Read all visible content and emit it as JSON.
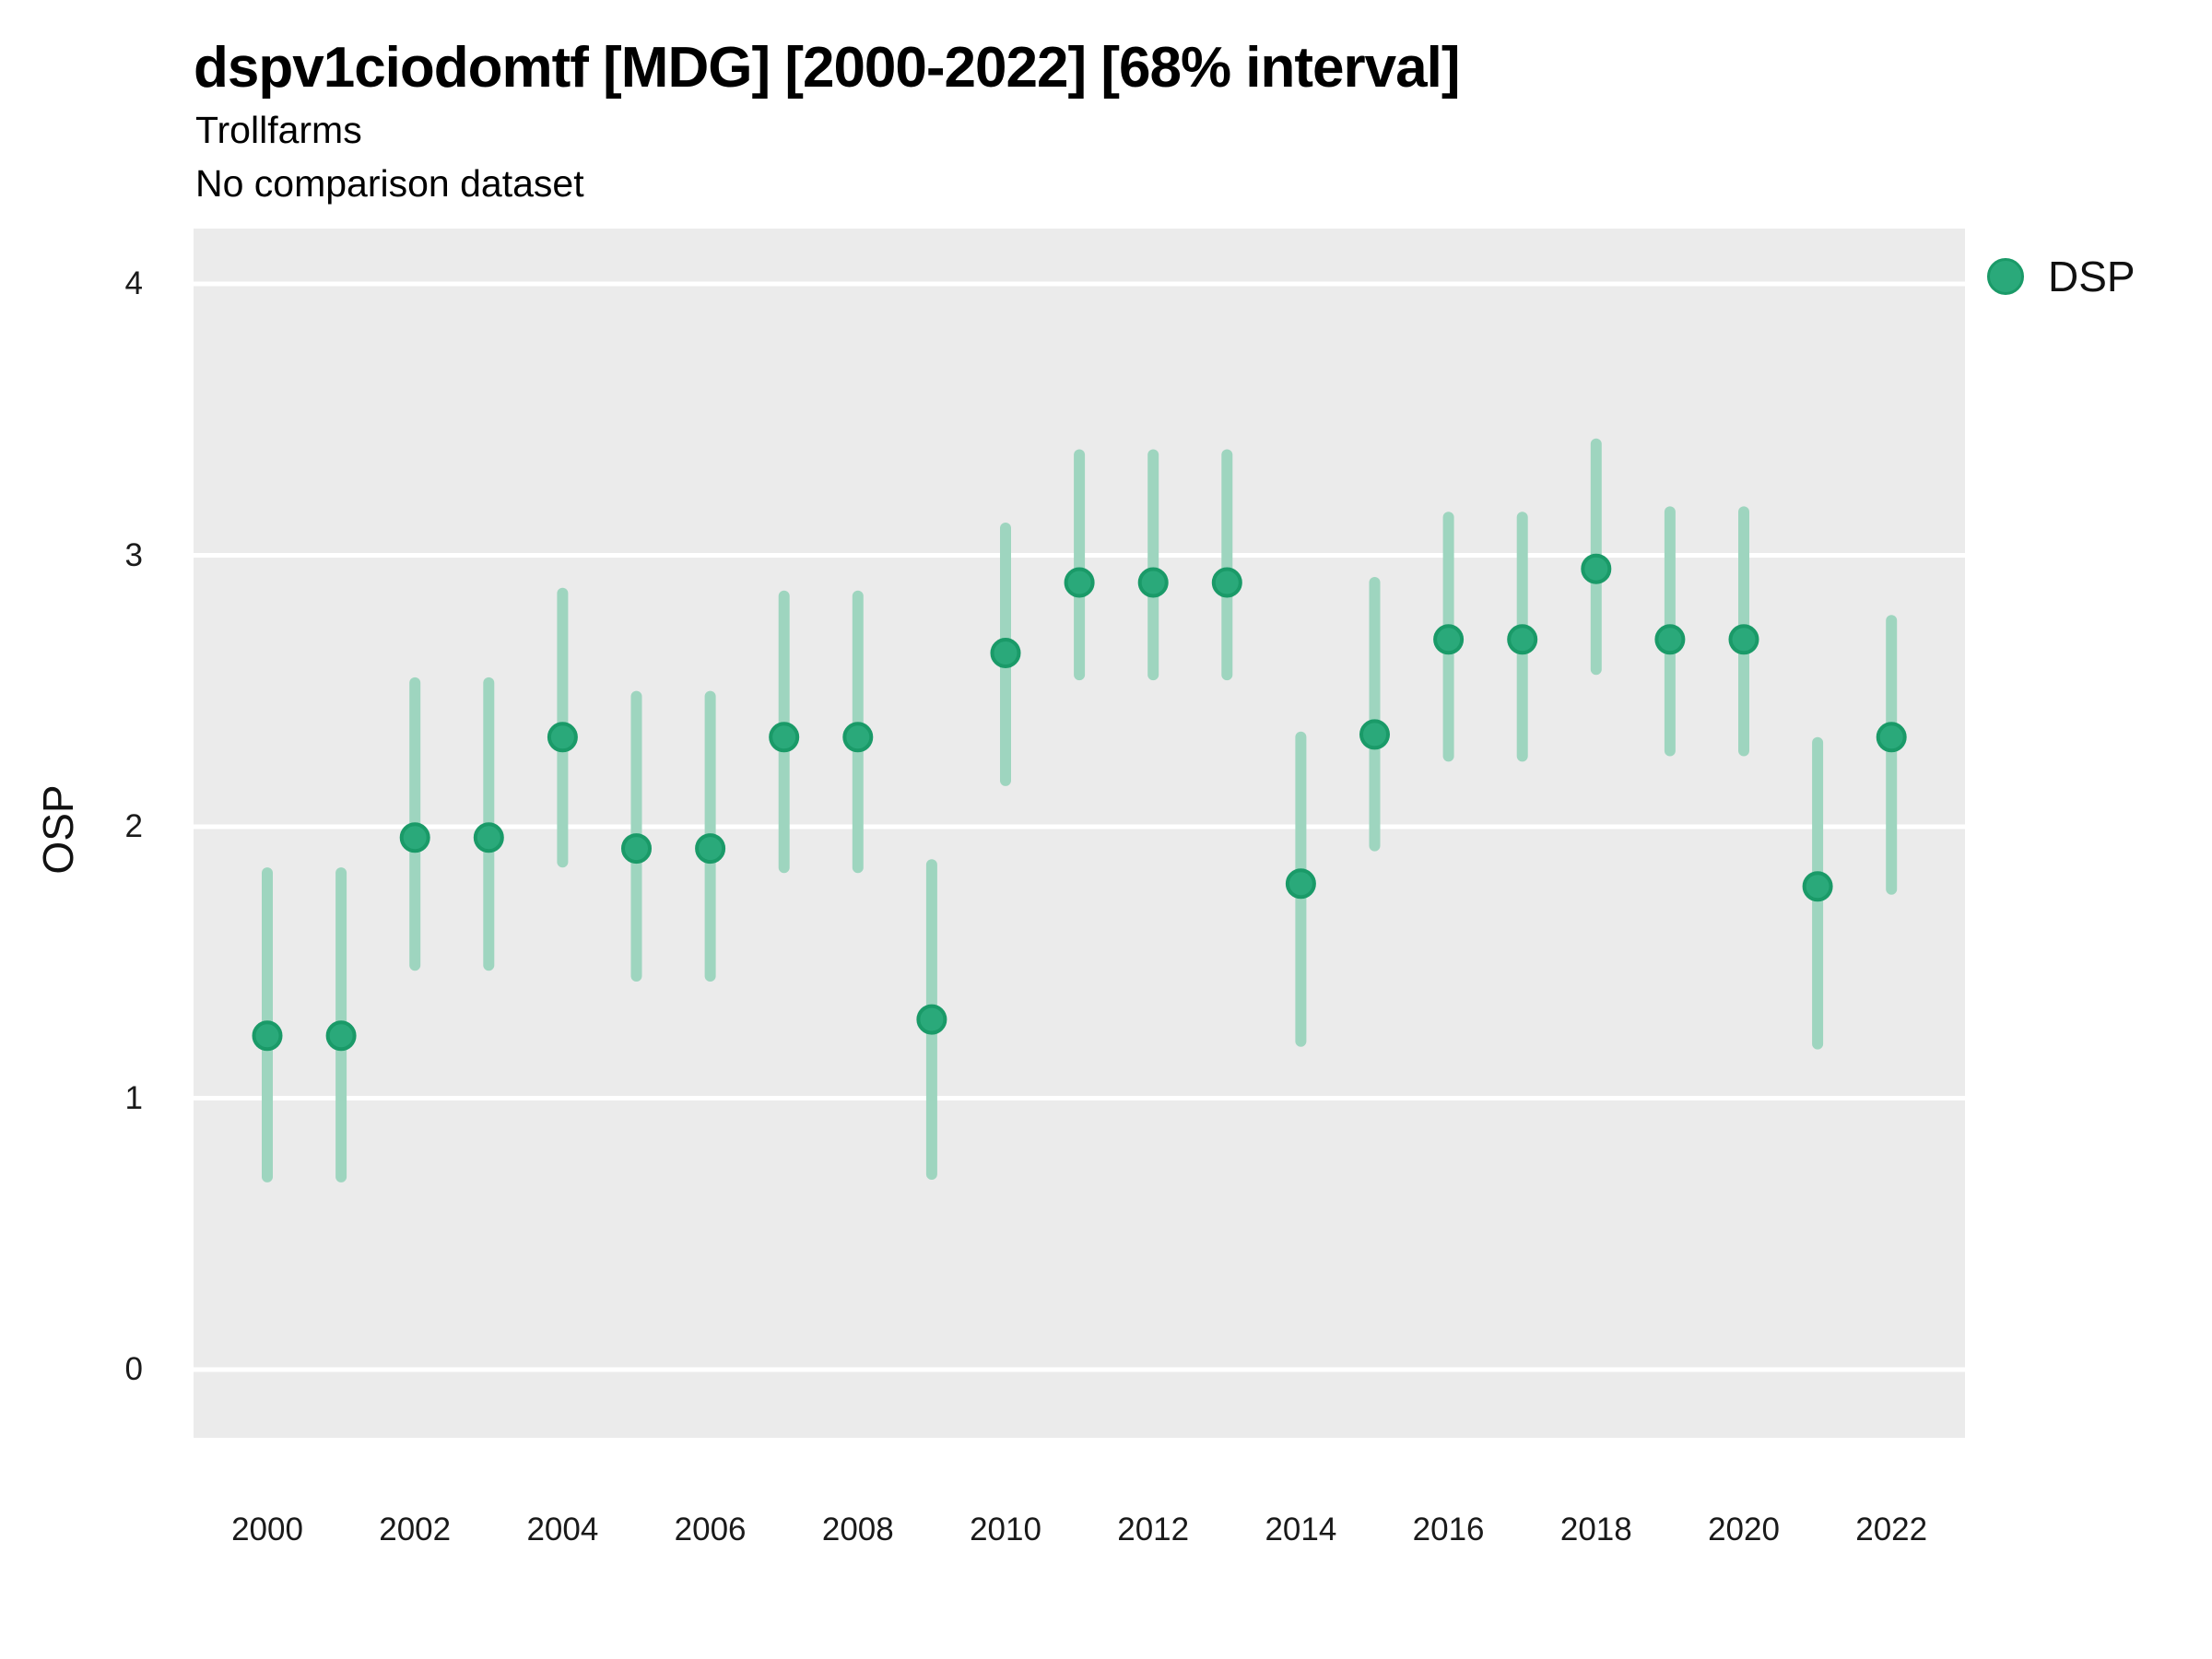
{
  "chart": {
    "title": "dspv1ciodomtf [MDG] [2000-2022] [68% interval]",
    "subtitle": "Trollfarms",
    "note": "No comparison dataset",
    "ylabel": "OSP",
    "legend": {
      "label": "DSP"
    }
  },
  "chart_data": {
    "type": "pointrange",
    "title": "dspv1ciodomtf [MDG] [2000-2022] [68% interval]",
    "subtitle": "Trollfarms",
    "note": "No comparison dataset",
    "xlabel": "",
    "ylabel": "OSP",
    "legend_position": "right",
    "grid": "horizontal-white-major",
    "ylim": [
      -0.25,
      4.21
    ],
    "xlim": [
      1999,
      2023
    ],
    "y_ticks": [
      0,
      1,
      2,
      3,
      4
    ],
    "x_ticks": [
      2000,
      2002,
      2004,
      2006,
      2008,
      2010,
      2012,
      2014,
      2016,
      2018,
      2020,
      2022
    ],
    "series": [
      {
        "name": "DSP",
        "points": [
          {
            "year": 2000,
            "value": 1.23,
            "lo": 0.71,
            "hi": 1.83
          },
          {
            "year": 2001,
            "value": 1.23,
            "lo": 0.71,
            "hi": 1.83
          },
          {
            "year": 2002,
            "value": 1.96,
            "lo": 1.49,
            "hi": 2.53
          },
          {
            "year": 2003,
            "value": 1.96,
            "lo": 1.49,
            "hi": 2.53
          },
          {
            "year": 2004,
            "value": 2.33,
            "lo": 1.87,
            "hi": 2.86
          },
          {
            "year": 2005,
            "value": 1.92,
            "lo": 1.45,
            "hi": 2.48
          },
          {
            "year": 2006,
            "value": 1.92,
            "lo": 1.45,
            "hi": 2.48
          },
          {
            "year": 2007,
            "value": 2.33,
            "lo": 1.85,
            "hi": 2.85
          },
          {
            "year": 2008,
            "value": 2.33,
            "lo": 1.85,
            "hi": 2.85
          },
          {
            "year": 2009,
            "value": 1.29,
            "lo": 0.72,
            "hi": 1.86
          },
          {
            "year": 2010,
            "value": 2.64,
            "lo": 2.17,
            "hi": 3.1
          },
          {
            "year": 2011,
            "value": 2.9,
            "lo": 2.56,
            "hi": 3.37
          },
          {
            "year": 2012,
            "value": 2.9,
            "lo": 2.56,
            "hi": 3.37
          },
          {
            "year": 2013,
            "value": 2.9,
            "lo": 2.56,
            "hi": 3.37
          },
          {
            "year": 2014,
            "value": 1.79,
            "lo": 1.21,
            "hi": 2.33
          },
          {
            "year": 2015,
            "value": 2.34,
            "lo": 1.93,
            "hi": 2.9
          },
          {
            "year": 2016,
            "value": 2.69,
            "lo": 2.26,
            "hi": 3.14
          },
          {
            "year": 2017,
            "value": 2.69,
            "lo": 2.26,
            "hi": 3.14
          },
          {
            "year": 2018,
            "value": 2.95,
            "lo": 2.58,
            "hi": 3.41
          },
          {
            "year": 2019,
            "value": 2.69,
            "lo": 2.28,
            "hi": 3.16
          },
          {
            "year": 2020,
            "value": 2.69,
            "lo": 2.28,
            "hi": 3.16
          },
          {
            "year": 2021,
            "value": 1.78,
            "lo": 1.2,
            "hi": 2.31
          },
          {
            "year": 2022,
            "value": 2.33,
            "lo": 1.77,
            "hi": 2.76
          }
        ]
      }
    ],
    "colors": {
      "panel_bg": "#ebebeb",
      "grid": "#ffffff",
      "interval": "#9ed5bf",
      "point_fill": "#2aa97a",
      "point_stroke": "#1a9a68",
      "text": "#1a1a1a"
    }
  }
}
